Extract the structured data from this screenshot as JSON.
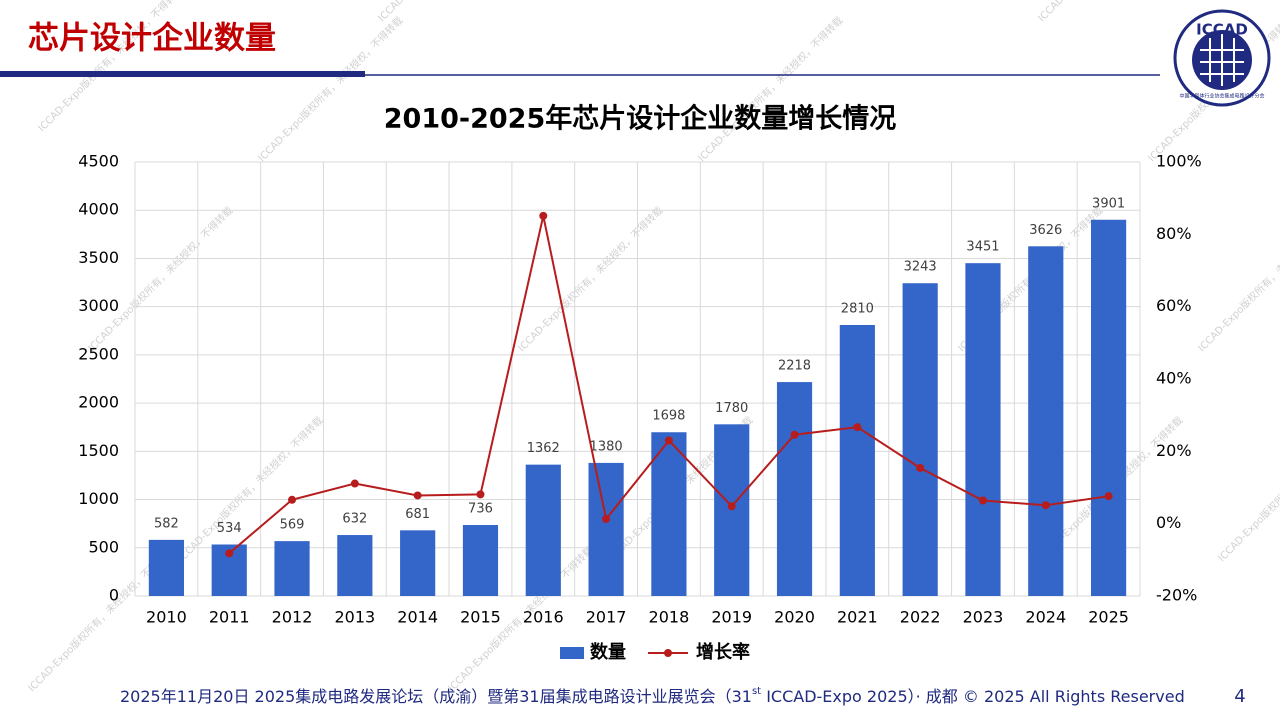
{
  "header": {
    "title": "芯片设计企业数量",
    "logo_text": "ICCAD",
    "logo_ring": "中国半导体行业协会集成电路设计分会"
  },
  "watermark": "ICCAD-Expo版权所有，未经授权，不得转载",
  "chart_data": {
    "type": "bar",
    "title": "2010-2025年芯片设计企业数量增长情况",
    "categories": [
      "2010",
      "2011",
      "2012",
      "2013",
      "2014",
      "2015",
      "2016",
      "2017",
      "2018",
      "2019",
      "2020",
      "2021",
      "2022",
      "2023",
      "2024",
      "2025"
    ],
    "series": [
      {
        "name": "数量",
        "type": "bar",
        "color": "#3465c8",
        "values": [
          582,
          534,
          569,
          632,
          681,
          736,
          1362,
          1380,
          1698,
          1780,
          2218,
          2810,
          3243,
          3451,
          3626,
          3901
        ]
      },
      {
        "name": "增长率",
        "type": "line",
        "axis": "y2",
        "color": "#b81d1d",
        "values": [
          null,
          -8.2,
          6.6,
          11.1,
          7.8,
          8.1,
          85.1,
          1.3,
          23.0,
          4.8,
          24.6,
          26.7,
          15.4,
          6.4,
          5.1,
          7.6
        ]
      }
    ],
    "ylim": [
      0,
      4500
    ],
    "yticks": [
      0,
      500,
      1000,
      1500,
      2000,
      2500,
      3000,
      3500,
      4000,
      4500
    ],
    "y2lim": [
      -20,
      100
    ],
    "y2ticks": [
      {
        "value": -20,
        "label": "-20%"
      },
      {
        "value": 0,
        "label": "0%"
      },
      {
        "value": 20,
        "label": "20%"
      },
      {
        "value": 40,
        "label": "40%"
      },
      {
        "value": 60,
        "label": "60%"
      },
      {
        "value": 80,
        "label": "80%"
      },
      {
        "value": 100,
        "label": "100%"
      }
    ],
    "grid": true,
    "legend": "bottom"
  },
  "footer": {
    "parts": [
      "2025年11月20日 2025集成电路发展论坛（成渝）暨第31届集成电路设计业展览会（31",
      "st",
      " ICCAD-Expo 2025）· 成都 © 2025 All Rights Reserved"
    ],
    "page": "4"
  }
}
